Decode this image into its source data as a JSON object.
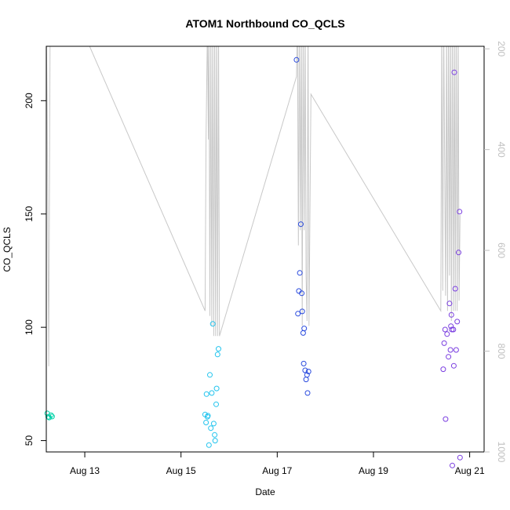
{
  "chart_data": {
    "type": "scatter",
    "title": "ATOM1 Northbound CO_QCLS",
    "xlabel": "Date",
    "ylabel": "CO_QCLS",
    "x_unit": "days since Aug 12 00:00",
    "xlim": [
      12.2,
      21.3
    ],
    "ylim": [
      45,
      224
    ],
    "x_ticks": [
      {
        "x": 13,
        "label": "Aug 13"
      },
      {
        "x": 15,
        "label": "Aug 15"
      },
      {
        "x": 17,
        "label": "Aug 17"
      },
      {
        "x": 19,
        "label": "Aug 19"
      },
      {
        "x": 21,
        "label": "Aug 21"
      }
    ],
    "y_ticks": [
      50,
      100,
      150,
      200
    ],
    "secondary_axis": {
      "side": "right",
      "reversed": true,
      "ylim": [
        1000,
        195
      ],
      "ticks": [
        200,
        400,
        600,
        800,
        1000
      ],
      "color": "#c0c0c0"
    },
    "series": [
      {
        "color": "#00d2a8",
        "points": [
          [
            12.22,
            62
          ],
          [
            12.24,
            60.5
          ],
          [
            12.26,
            60.2
          ],
          [
            12.3,
            61.2
          ],
          [
            12.32,
            60.6
          ]
        ]
      },
      {
        "color": "#22c4ee",
        "points": [
          [
            15.5,
            61.5
          ],
          [
            15.52,
            58
          ],
          [
            15.53,
            70.5
          ],
          [
            15.55,
            60.5
          ],
          [
            15.56,
            61
          ],
          [
            15.58,
            48
          ],
          [
            15.6,
            79
          ],
          [
            15.62,
            55.5
          ],
          [
            15.64,
            71
          ],
          [
            15.66,
            101.5
          ],
          [
            15.68,
            57.5
          ],
          [
            15.7,
            52.5
          ],
          [
            15.71,
            50
          ],
          [
            15.73,
            66
          ],
          [
            15.74,
            73
          ],
          [
            15.76,
            88
          ],
          [
            15.78,
            90.5
          ]
        ]
      },
      {
        "color": "#2a4bde",
        "points": [
          [
            17.4,
            218
          ],
          [
            17.43,
            106
          ],
          [
            17.45,
            116
          ],
          [
            17.47,
            124
          ],
          [
            17.49,
            145.5
          ],
          [
            17.51,
            115
          ],
          [
            17.52,
            107
          ],
          [
            17.54,
            97.5
          ],
          [
            17.55,
            84
          ],
          [
            17.56,
            99.5
          ],
          [
            17.58,
            81
          ],
          [
            17.6,
            77
          ],
          [
            17.62,
            79
          ],
          [
            17.63,
            71
          ],
          [
            17.65,
            80.5
          ]
        ]
      },
      {
        "color": "#7a3ee0",
        "points": [
          [
            20.45,
            81.5
          ],
          [
            20.47,
            93
          ],
          [
            20.49,
            99
          ],
          [
            20.5,
            59.5
          ],
          [
            20.53,
            97
          ],
          [
            20.56,
            87
          ],
          [
            20.58,
            110.5
          ],
          [
            20.6,
            90
          ],
          [
            20.61,
            100.5
          ],
          [
            20.62,
            105.5
          ],
          [
            20.63,
            99
          ],
          [
            20.64,
            39
          ],
          [
            20.66,
            99
          ],
          [
            20.67,
            83
          ],
          [
            20.68,
            212.5
          ],
          [
            20.7,
            117
          ],
          [
            20.72,
            90
          ],
          [
            20.74,
            102.5
          ],
          [
            20.77,
            133
          ],
          [
            20.79,
            151
          ],
          [
            20.8,
            42.5
          ]
        ]
      }
    ],
    "secondary_line": {
      "color": "#c8c8c8",
      "points": [
        [
          12.2,
          150
        ],
        [
          12.22,
          330
        ],
        [
          12.25,
          830
        ],
        [
          12.28,
          150
        ],
        [
          13.1,
          195
        ],
        [
          15.5,
          720
        ],
        [
          15.52,
          380
        ],
        [
          15.55,
          150
        ],
        [
          15.57,
          380
        ],
        [
          15.58,
          150
        ],
        [
          15.6,
          730
        ],
        [
          15.62,
          150
        ],
        [
          15.64,
          750
        ],
        [
          15.66,
          150
        ],
        [
          15.68,
          770
        ],
        [
          15.7,
          150
        ],
        [
          15.72,
          770
        ],
        [
          15.74,
          150
        ],
        [
          15.76,
          770
        ],
        [
          15.78,
          150
        ],
        [
          15.8,
          770
        ],
        [
          17.4,
          255
        ],
        [
          17.42,
          150
        ],
        [
          17.44,
          590
        ],
        [
          17.46,
          150
        ],
        [
          17.48,
          560
        ],
        [
          17.5,
          150
        ],
        [
          17.52,
          750
        ],
        [
          17.54,
          150
        ],
        [
          17.56,
          560
        ],
        [
          17.58,
          150
        ],
        [
          17.6,
          650
        ],
        [
          17.62,
          740
        ],
        [
          17.64,
          150
        ],
        [
          17.66,
          750
        ],
        [
          17.7,
          290
        ],
        [
          20.4,
          720
        ],
        [
          20.42,
          150
        ],
        [
          20.44,
          680
        ],
        [
          20.46,
          150
        ],
        [
          20.5,
          690
        ],
        [
          20.52,
          150
        ],
        [
          20.54,
          720
        ],
        [
          20.56,
          150
        ],
        [
          20.58,
          650
        ],
        [
          20.6,
          150
        ],
        [
          20.62,
          740
        ],
        [
          20.64,
          150
        ],
        [
          20.66,
          720
        ],
        [
          20.68,
          150
        ],
        [
          20.7,
          720
        ],
        [
          20.72,
          150
        ],
        [
          20.74,
          720
        ],
        [
          20.76,
          150
        ],
        [
          20.78,
          700
        ],
        [
          20.8,
          530
        ]
      ]
    }
  }
}
